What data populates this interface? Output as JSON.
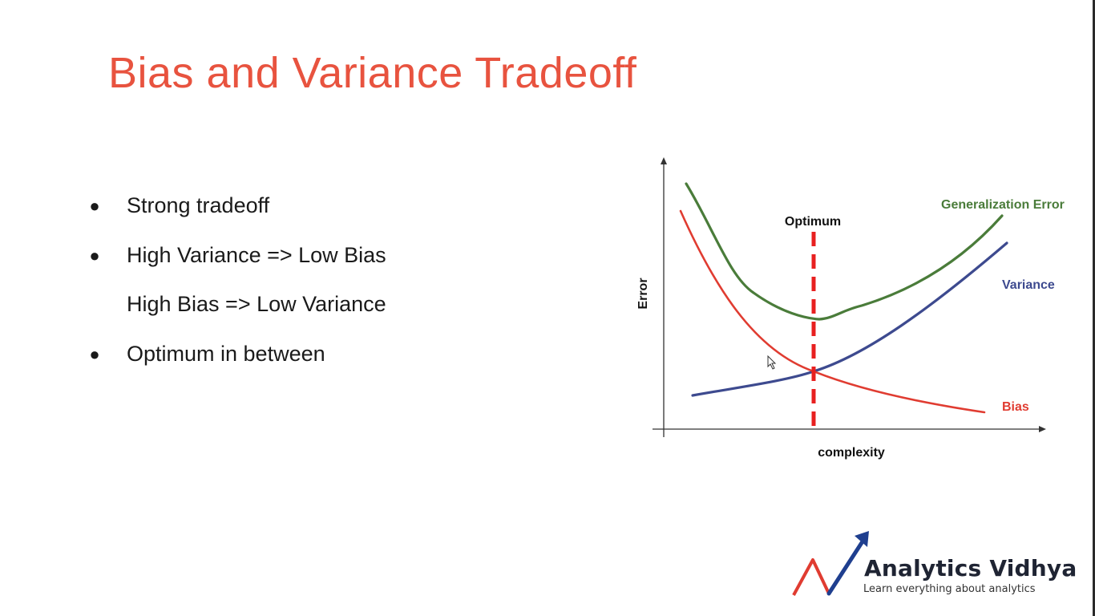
{
  "slide": {
    "title": "Bias and Variance Tradeoff",
    "bullets": [
      {
        "bullet": "●",
        "text": "Strong tradeoff"
      },
      {
        "bullet": "●",
        "text": "High Variance => Low Bias"
      },
      {
        "bullet": "",
        "text": "High Bias => Low Variance"
      },
      {
        "bullet": "●",
        "text": "Optimum in between"
      }
    ]
  },
  "chart_data": {
    "type": "line",
    "xlabel": "complexity",
    "ylabel": "Error",
    "grid": false,
    "annotations": [
      {
        "text": "Optimum"
      }
    ],
    "series": [
      {
        "name": "Generalization Error",
        "color": "#4a7c3a"
      },
      {
        "name": "Variance",
        "color": "#3d4a8f"
      },
      {
        "name": "Bias",
        "color": "#e03c31"
      }
    ],
    "optimum_line_color": "#e82020"
  },
  "logo": {
    "name": "Analytics Vidhya",
    "tagline": "Learn everything about analytics"
  },
  "colors": {
    "title": "#e8533f",
    "text": "#1a1a1a",
    "logo_dark": "#1f2433",
    "logo_blue": "#1f3f8f",
    "logo_red": "#e03c31"
  }
}
